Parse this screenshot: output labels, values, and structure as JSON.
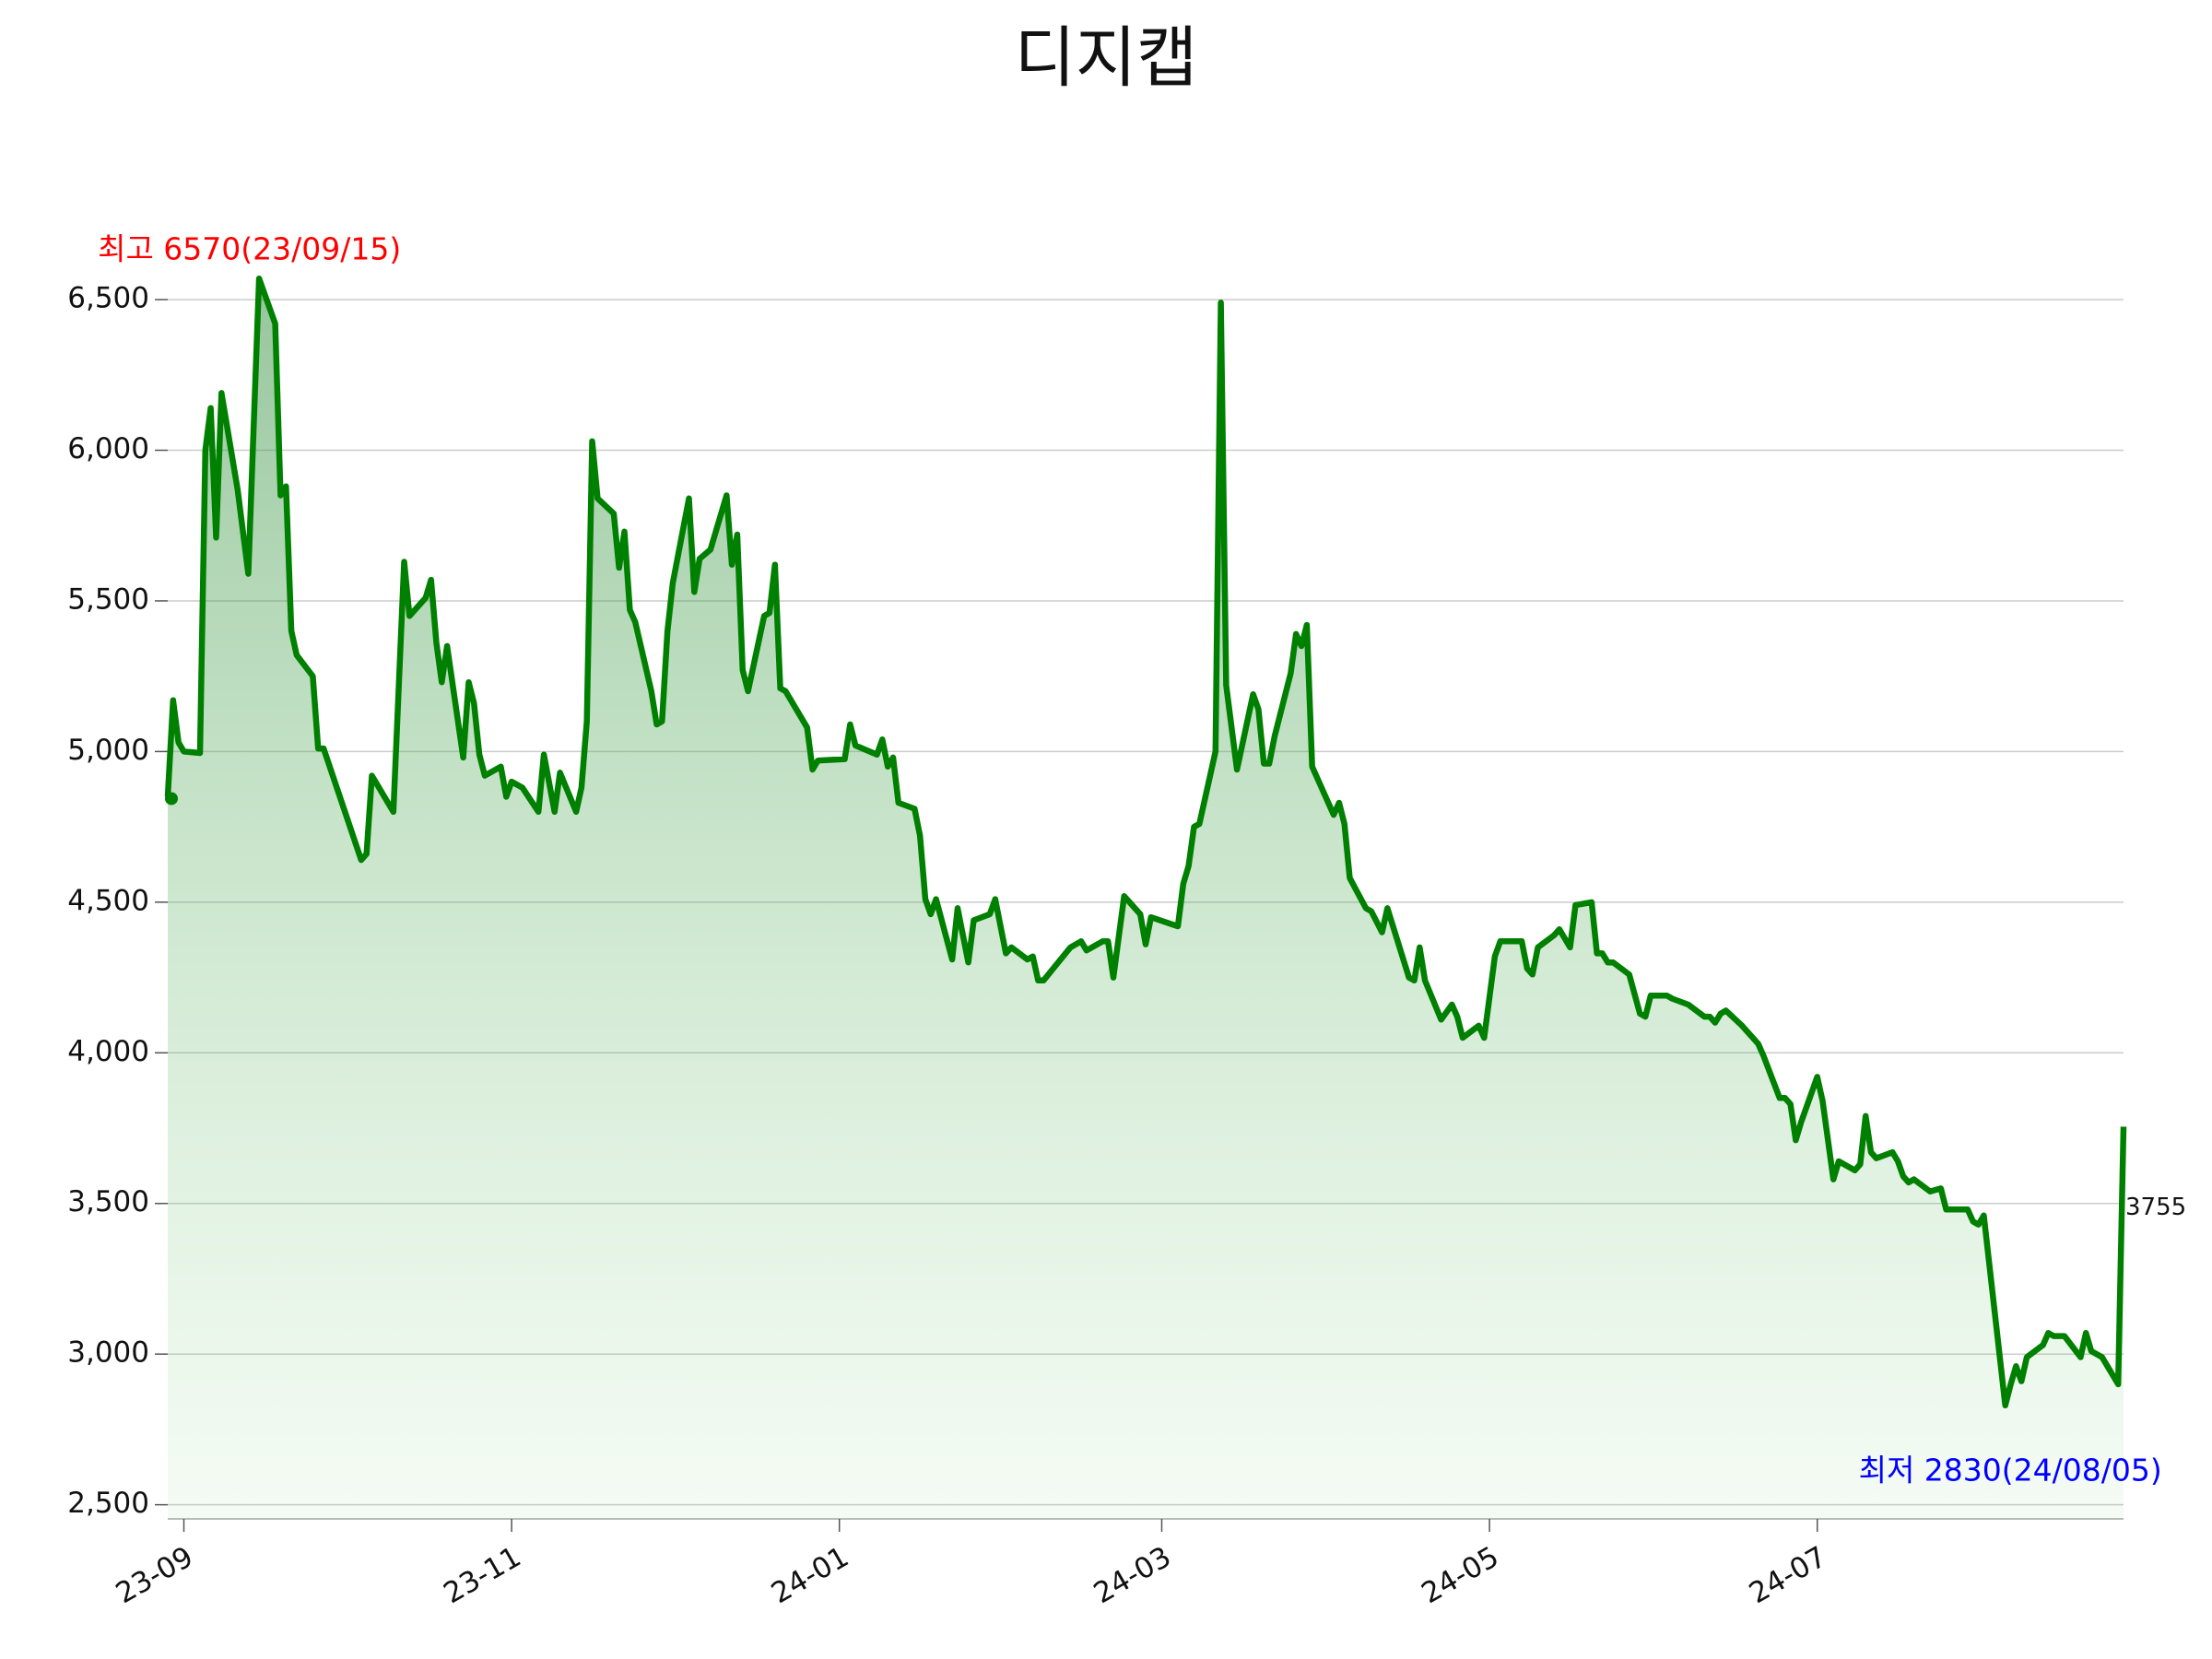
{
  "chart_data": {
    "type": "line",
    "title": "디지캡",
    "x": [
      "2023-08-29",
      "2023-08-30",
      "2023-08-31",
      "2023-09-01",
      "2023-09-04",
      "2023-09-05",
      "2023-09-06",
      "2023-09-07",
      "2023-09-08",
      "2023-09-11",
      "2023-09-13",
      "2023-09-15",
      "2023-09-18",
      "2023-09-19",
      "2023-09-20",
      "2023-09-21",
      "2023-09-22",
      "2023-09-25",
      "2023-09-26",
      "2023-09-27",
      "2023-10-04",
      "2023-10-05",
      "2023-10-06",
      "2023-10-10",
      "2023-10-12",
      "2023-10-13",
      "2023-10-16",
      "2023-10-17",
      "2023-10-18",
      "2023-10-19",
      "2023-10-20",
      "2023-10-23",
      "2023-10-24",
      "2023-10-25",
      "2023-10-26",
      "2023-10-27",
      "2023-10-30",
      "2023-10-31",
      "2023-11-01",
      "2023-11-03",
      "2023-11-06",
      "2023-11-07",
      "2023-11-09",
      "2023-11-10",
      "2023-11-13",
      "2023-11-14",
      "2023-11-15",
      "2023-11-16",
      "2023-11-17",
      "2023-11-20",
      "2023-11-21",
      "2023-11-22",
      "2023-11-23",
      "2023-11-24",
      "2023-11-27",
      "2023-11-28",
      "2023-11-29",
      "2023-11-30",
      "2023-12-01",
      "2023-12-04",
      "2023-12-05",
      "2023-12-06",
      "2023-12-08",
      "2023-12-11",
      "2023-12-12",
      "2023-12-13",
      "2023-12-14",
      "2023-12-15",
      "2023-12-18",
      "2023-12-19",
      "2023-12-20",
      "2023-12-21",
      "2023-12-22",
      "2023-12-26",
      "2023-12-27",
      "2023-12-28",
      "2024-01-02",
      "2024-01-03",
      "2024-01-04",
      "2024-01-08",
      "2024-01-09",
      "2024-01-10",
      "2024-01-11",
      "2024-01-12",
      "2024-01-15",
      "2024-01-16",
      "2024-01-17",
      "2024-01-18",
      "2024-01-19",
      "2024-01-22",
      "2024-01-23",
      "2024-01-25",
      "2024-01-26",
      "2024-01-29",
      "2024-01-30",
      "2024-02-01",
      "2024-02-02",
      "2024-02-05",
      "2024-02-06",
      "2024-02-07",
      "2024-02-08",
      "2024-02-13",
      "2024-02-15",
      "2024-02-16",
      "2024-02-19",
      "2024-02-20",
      "2024-02-21",
      "2024-02-23",
      "2024-02-26",
      "2024-02-27",
      "2024-02-28",
      "2024-03-04",
      "2024-03-05",
      "2024-03-06",
      "2024-03-07",
      "2024-03-08",
      "2024-03-11",
      "2024-03-12",
      "2024-03-13",
      "2024-03-15",
      "2024-03-18",
      "2024-03-19",
      "2024-03-20",
      "2024-03-21",
      "2024-03-22",
      "2024-03-25",
      "2024-03-26",
      "2024-03-27",
      "2024-03-28",
      "2024-03-29",
      "2024-04-02",
      "2024-04-03",
      "2024-04-04",
      "2024-04-05",
      "2024-04-08",
      "2024-04-09",
      "2024-04-11",
      "2024-04-12",
      "2024-04-16",
      "2024-04-17",
      "2024-04-18",
      "2024-04-19",
      "2024-04-22",
      "2024-04-24",
      "2024-04-25",
      "2024-04-26",
      "2024-04-29",
      "2024-04-30",
      "2024-05-02",
      "2024-05-03",
      "2024-05-07",
      "2024-05-08",
      "2024-05-09",
      "2024-05-10",
      "2024-05-13",
      "2024-05-14",
      "2024-05-16",
      "2024-05-17",
      "2024-05-20",
      "2024-05-21",
      "2024-05-22",
      "2024-05-23",
      "2024-05-24",
      "2024-05-27",
      "2024-05-29",
      "2024-05-30",
      "2024-05-31",
      "2024-06-03",
      "2024-06-04",
      "2024-06-07",
      "2024-06-10",
      "2024-06-11",
      "2024-06-12",
      "2024-06-13",
      "2024-06-14",
      "2024-06-17",
      "2024-06-20",
      "2024-06-21",
      "2024-06-24",
      "2024-06-25",
      "2024-06-26",
      "2024-06-27",
      "2024-06-28",
      "2024-07-01",
      "2024-07-02",
      "2024-07-04",
      "2024-07-05",
      "2024-07-08",
      "2024-07-09",
      "2024-07-10",
      "2024-07-11",
      "2024-07-12",
      "2024-07-15",
      "2024-07-16",
      "2024-07-17",
      "2024-07-18",
      "2024-07-19",
      "2024-07-22",
      "2024-07-24",
      "2024-07-25",
      "2024-07-26",
      "2024-07-29",
      "2024-07-30",
      "2024-07-31",
      "2024-08-01",
      "2024-08-05",
      "2024-08-06",
      "2024-08-07",
      "2024-08-08",
      "2024-08-09",
      "2024-08-12",
      "2024-08-13",
      "2024-08-14",
      "2024-08-16",
      "2024-08-19",
      "2024-08-20",
      "2024-08-21",
      "2024-08-23",
      "2024-08-26",
      "2024-08-27"
    ],
    "series": [
      {
        "name": "디지캡",
        "color": "#008000",
        "values": [
          4850,
          5170,
          5030,
          5000,
          4995,
          6000,
          6140,
          5710,
          6190,
          5870,
          5590,
          6570,
          6420,
          5850,
          5880,
          5400,
          5320,
          5250,
          5010,
          5010,
          4640,
          4660,
          4920,
          4800,
          5630,
          5450,
          5510,
          5570,
          5360,
          5230,
          5350,
          4980,
          5230,
          5160,
          4990,
          4920,
          4950,
          4850,
          4900,
          4880,
          4800,
          4990,
          4800,
          4930,
          4800,
          4880,
          5100,
          6030,
          5840,
          5790,
          5610,
          5730,
          5470,
          5430,
          5200,
          5090,
          5100,
          5400,
          5560,
          5840,
          5530,
          5640,
          5670,
          5850,
          5620,
          5720,
          5270,
          5200,
          5450,
          5460,
          5620,
          5210,
          5200,
          5080,
          4940,
          4970,
          4975,
          5090,
          5020,
          4990,
          5040,
          4950,
          4980,
          4830,
          4810,
          4720,
          4510,
          4460,
          4510,
          4310,
          4480,
          4300,
          4440,
          4460,
          4510,
          4330,
          4350,
          4310,
          4320,
          4240,
          4240,
          4350,
          4370,
          4340,
          4370,
          4370,
          4250,
          4520,
          4460,
          4360,
          4450,
          4420,
          4560,
          4620,
          4750,
          4760,
          5000,
          6490,
          5220,
          4940,
          5190,
          5140,
          4960,
          4960,
          5050,
          5260,
          5390,
          5350,
          5420,
          4950,
          4790,
          4830,
          4760,
          4580,
          4480,
          4470,
          4400,
          4480,
          4250,
          4240,
          4350,
          4240,
          4110,
          4160,
          4120,
          4050,
          4090,
          4050,
          4320,
          4370,
          4370,
          4280,
          4260,
          4350,
          4390,
          4410,
          4350,
          4490,
          4500,
          4330,
          4330,
          4300,
          4300,
          4260,
          4130,
          4120,
          4190,
          4190,
          4180,
          4160,
          4120,
          4120,
          4100,
          4130,
          4140,
          4090,
          4030,
          3990,
          3850,
          3850,
          3830,
          3710,
          3770,
          3920,
          3840,
          3580,
          3640,
          3610,
          3630,
          3790,
          3670,
          3650,
          3670,
          3640,
          3590,
          3570,
          3580,
          3540,
          3550,
          3480,
          3480,
          3480,
          3440,
          3430,
          3460,
          2830,
          2900,
          2960,
          2910,
          2990,
          3030,
          3070,
          3060,
          3060,
          2990,
          3070,
          3010,
          2990,
          2900,
          3755
        ]
      }
    ],
    "xlim": [
      "2023-08-29",
      "2024-08-27"
    ],
    "xticks": [
      {
        "value": "2023-09-01",
        "label": "23-09"
      },
      {
        "value": "2023-11-01",
        "label": "23-11"
      },
      {
        "value": "2024-01-01",
        "label": "24-01"
      },
      {
        "value": "2024-03-01",
        "label": "24-03"
      },
      {
        "value": "2024-05-01",
        "label": "24-05"
      },
      {
        "value": "2024-07-01",
        "label": "24-07"
      }
    ],
    "ylim": [
      2453,
      6800
    ],
    "yticks": [
      {
        "value": 2500,
        "label": "2,500"
      },
      {
        "value": 3000,
        "label": "3,000"
      },
      {
        "value": 3500,
        "label": "3,500"
      },
      {
        "value": 4000,
        "label": "4,000"
      },
      {
        "value": 4500,
        "label": "4,500"
      },
      {
        "value": 5000,
        "label": "5,000"
      },
      {
        "value": 5500,
        "label": "5,500"
      },
      {
        "value": 6000,
        "label": "6,000"
      },
      {
        "value": 6500,
        "label": "6,500"
      }
    ],
    "grid": true,
    "annotations": [
      {
        "text": "최고 6570(23/09/15)",
        "color": "red"
      },
      {
        "text": "최저 2830(24/08/05)",
        "color": "blue"
      },
      {
        "text": "3755",
        "color": "#111111"
      }
    ]
  }
}
